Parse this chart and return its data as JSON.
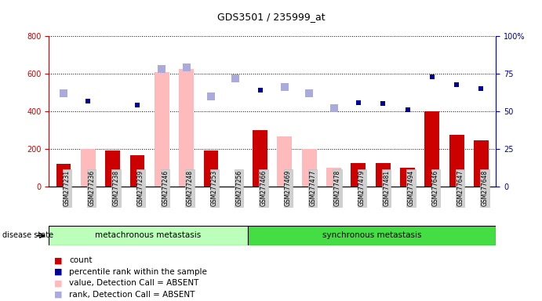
{
  "title": "GDS3501 / 235999_at",
  "samples": [
    "GSM277231",
    "GSM277236",
    "GSM277238",
    "GSM277239",
    "GSM277246",
    "GSM277248",
    "GSM277253",
    "GSM277256",
    "GSM277466",
    "GSM277469",
    "GSM277477",
    "GSM277478",
    "GSM277479",
    "GSM277481",
    "GSM277494",
    "GSM277646",
    "GSM277647",
    "GSM277648"
  ],
  "count_present": [
    120,
    null,
    190,
    165,
    null,
    null,
    190,
    null,
    300,
    null,
    null,
    null,
    125,
    125,
    100,
    400,
    275,
    245
  ],
  "count_absent": [
    null,
    200,
    null,
    null,
    610,
    625,
    null,
    null,
    null,
    265,
    200,
    100,
    null,
    null,
    null,
    null,
    null,
    null
  ],
  "rank_present_pct": [
    null,
    57,
    null,
    54,
    null,
    null,
    null,
    null,
    64,
    null,
    null,
    null,
    56,
    55,
    51,
    73,
    68,
    65
  ],
  "rank_absent_pct": [
    null,
    null,
    null,
    null,
    78,
    79,
    null,
    72,
    null,
    null,
    null,
    52,
    null,
    null,
    null,
    null,
    null,
    null
  ],
  "rank_sq_absent_pct": [
    62,
    null,
    null,
    null,
    null,
    null,
    60,
    null,
    null,
    66,
    62,
    null,
    null,
    null,
    null,
    null,
    null,
    null
  ],
  "metachronous_count": 8,
  "synchronous_count": 10,
  "ylim_left": [
    0,
    800
  ],
  "ylim_right": [
    0,
    100
  ],
  "yticks_left": [
    0,
    200,
    400,
    600,
    800
  ],
  "yticks_right": [
    0,
    25,
    50,
    75,
    100
  ],
  "color_count_present": "#cc0000",
  "color_count_absent": "#ffbbbb",
  "color_rank_present": "#000099",
  "color_rank_absent": "#aaaadd",
  "group1_label": "metachronous metastasis",
  "group2_label": "synchronous metastasis",
  "group_bg1": "#bbffbb",
  "group_bg2": "#44dd44",
  "legend_items": [
    "count",
    "percentile rank within the sample",
    "value, Detection Call = ABSENT",
    "rank, Detection Call = ABSENT"
  ],
  "legend_colors": [
    "#cc0000",
    "#000099",
    "#ffbbbb",
    "#aaaadd"
  ]
}
